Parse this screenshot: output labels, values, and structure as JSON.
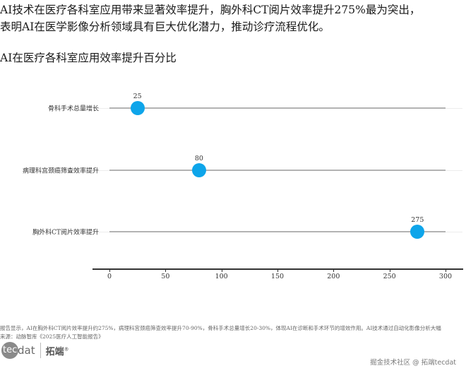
{
  "headline": {
    "line1": "AI技术在医疗各科室应用带来显著效率提升，胸外科CT阅片效率提升275%最为突出，",
    "line2": "表明AI在医学影像分析领域具有巨大优化潜力，推动诊疗流程优化。"
  },
  "chart_data": {
    "type": "lollipop",
    "title": "AI在医疗各科室应用效率提升百分比",
    "xlabel": "",
    "ylabel": "",
    "categories": [
      "骨科手术总量增长",
      "病理科宫颈癌筛查效率提升",
      "胸外科CT阅片效率提升"
    ],
    "values": [
      25,
      80,
      275
    ],
    "data_labels": [
      "25",
      "80",
      "275"
    ],
    "xlim": [
      0,
      300
    ],
    "xticks": [
      0,
      50,
      100,
      150,
      200,
      250,
      300
    ],
    "xtick_labels": [
      "0",
      "50",
      "100",
      "150",
      "200",
      "250",
      "300"
    ],
    "grid": "horizontal faint",
    "legend": "none",
    "dot_color": "#0ea5ea",
    "stem_color": "#b3b3b3"
  },
  "footer": {
    "note": "报告显示，AI在胸外科CT阅片效率提升约275%，病理科宫颈癌筛查效率提升70-90%，骨科手术总量增长20-30%，体现AI在诊断和手术环节的增效作用。AI技术通过自动化影像分析大幅",
    "source": "来源：动脉智库《2025医疗人工智能报告》",
    "logo_circle": "tec",
    "logo_dat": "dat",
    "logo_cn": "拓端",
    "logo_reg": "®",
    "watermark": "掘金技术社区 @ 拓端tecdat"
  }
}
